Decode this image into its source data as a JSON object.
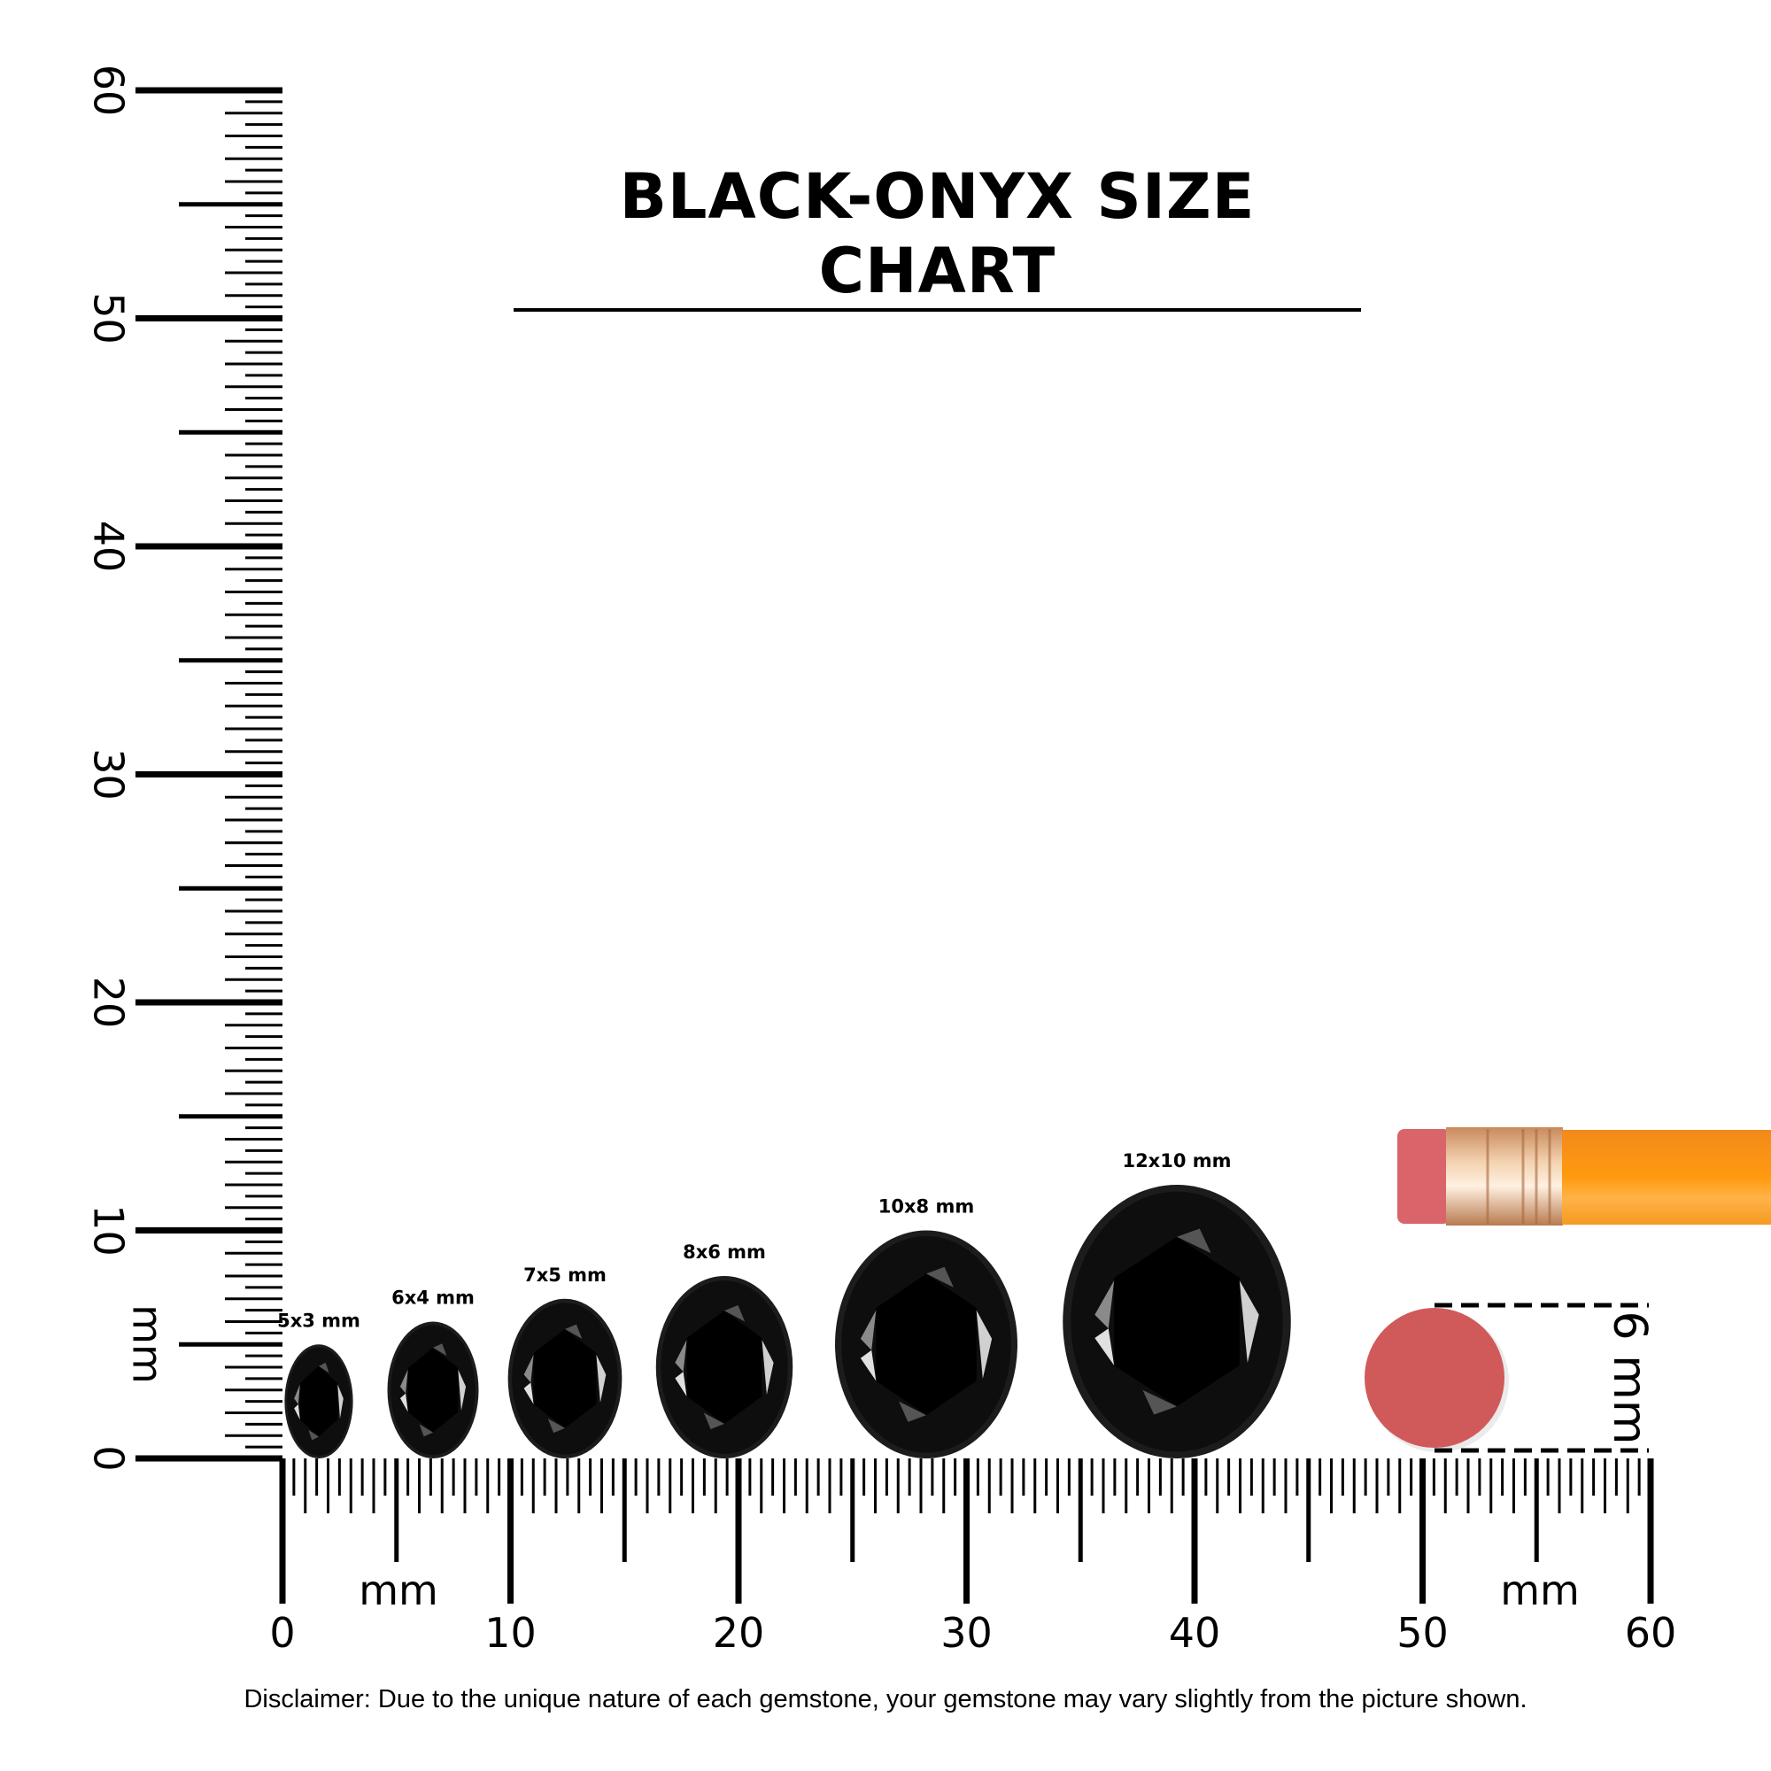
{
  "title": "BLACK-ONYX SIZE CHART",
  "disclaimer": "Disclaimer: Due to the unique nature of each gemstone, your gemstone may vary slightly from the picture shown.",
  "ruler": {
    "unit_label": "mm",
    "range_mm": [
      0,
      60
    ],
    "major_labels": [
      "0",
      "10",
      "20",
      "30",
      "40",
      "50",
      "60"
    ]
  },
  "gems": [
    {
      "label": "5x3 mm",
      "length_mm": 5,
      "width_mm": 3
    },
    {
      "label": "6x4 mm",
      "length_mm": 6,
      "width_mm": 4
    },
    {
      "label": "7x5 mm",
      "length_mm": 7,
      "width_mm": 5
    },
    {
      "label": "8x6 mm",
      "length_mm": 8,
      "width_mm": 6
    },
    {
      "label": "10x8 mm",
      "length_mm": 10,
      "width_mm": 8
    },
    {
      "label": "12x10 mm",
      "length_mm": 12,
      "width_mm": 10
    }
  ],
  "eraser_reference": {
    "label": "6 mm",
    "diameter_mm": 6
  },
  "colors": {
    "gem": "#0a0a0a",
    "eraser": "#d05a5a",
    "pencil": "#f7931e",
    "ferrule": "#d9a57a"
  }
}
